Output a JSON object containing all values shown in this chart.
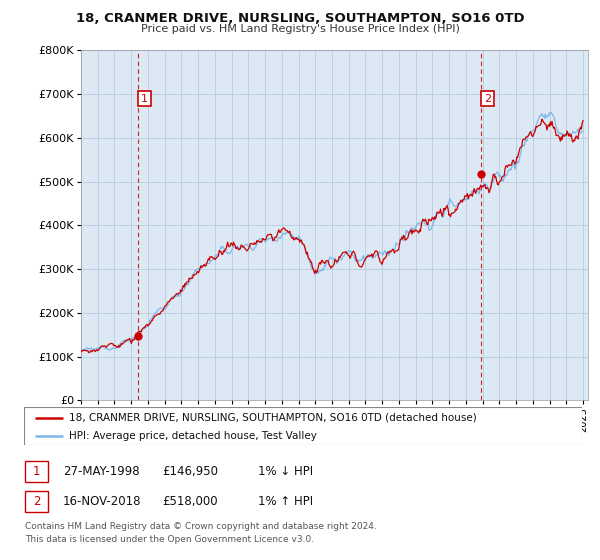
{
  "title": "18, CRANMER DRIVE, NURSLING, SOUTHAMPTON, SO16 0TD",
  "subtitle": "Price paid vs. HM Land Registry's House Price Index (HPI)",
  "legend_line1": "18, CRANMER DRIVE, NURSLING, SOUTHAMPTON, SO16 0TD (detached house)",
  "legend_line2": "HPI: Average price, detached house, Test Valley",
  "annotation1_label": "1",
  "annotation1_date": "27-MAY-1998",
  "annotation1_price": "£146,950",
  "annotation1_hpi": "1% ↓ HPI",
  "annotation2_label": "2",
  "annotation2_date": "16-NOV-2018",
  "annotation2_price": "£518,000",
  "annotation2_hpi": "1% ↑ HPI",
  "footer": "Contains HM Land Registry data © Crown copyright and database right 2024.\nThis data is licensed under the Open Government Licence v3.0.",
  "hpi_color": "#7eb7e8",
  "price_color": "#cc0000",
  "annotation_color": "#cc0000",
  "bg_color": "#ffffff",
  "plot_bg_color": "#dce9f5",
  "grid_color": "#b0c4d8",
  "ylim": [
    0,
    800000
  ],
  "yticks": [
    0,
    100000,
    200000,
    300000,
    400000,
    500000,
    600000,
    700000,
    800000
  ],
  "start_year": 1995,
  "end_year": 2025,
  "purchase1_year": 1998.38,
  "purchase1_price": 146950,
  "purchase2_year": 2018.88,
  "purchase2_price": 518000
}
